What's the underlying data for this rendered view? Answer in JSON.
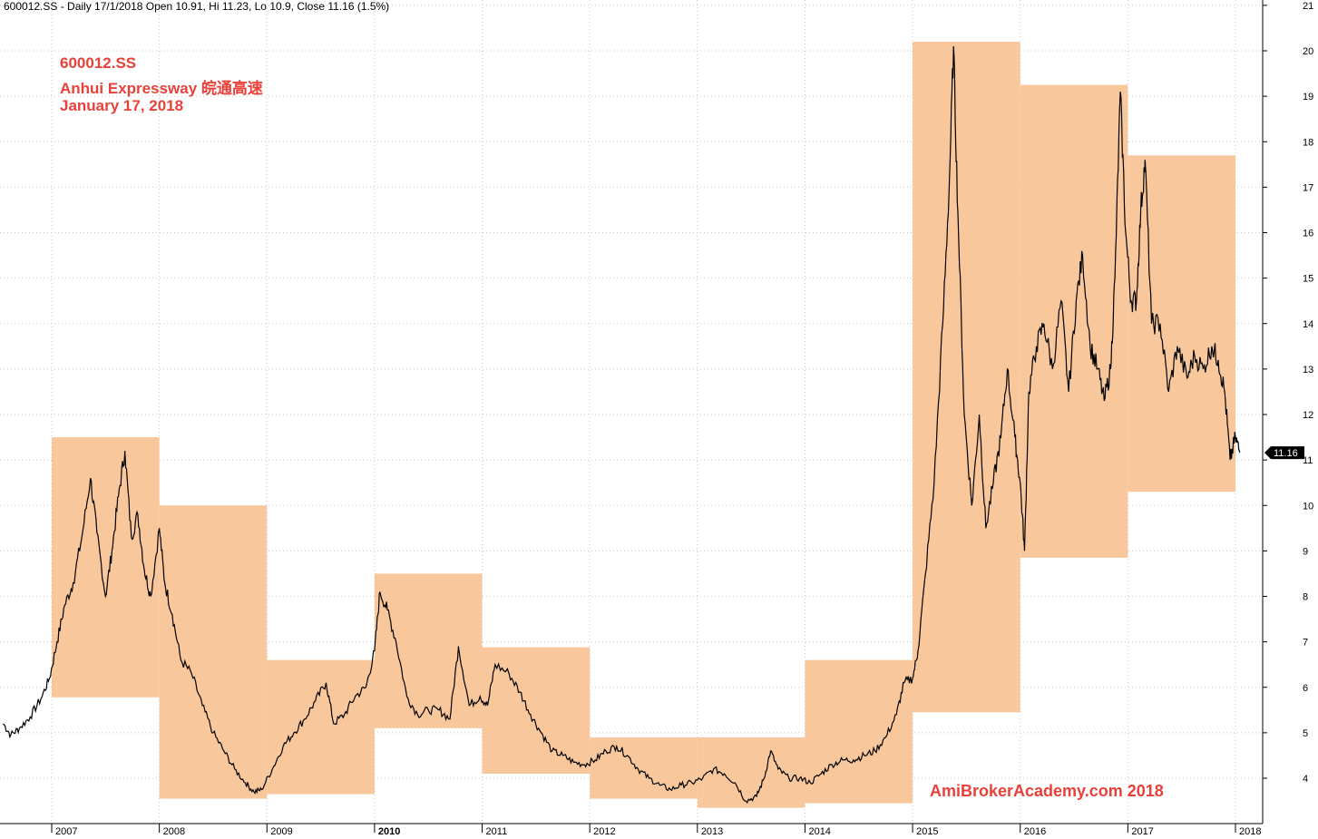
{
  "header": {
    "text": "600012.SS - Daily 17/1/2018 Open 10.91, Hi 11.23, Lo 10.9, Close 11.16 (1.5%)"
  },
  "annotation": {
    "line1": "600012.SS",
    "line2": "Anhui Expressway 皖通高速",
    "line3": "January 17, 2018"
  },
  "watermark": "AmiBrokerAcademy.com  2018",
  "colors": {
    "box_fill": "#f8c89c",
    "price_line": "#000000",
    "grid": "#c8c8c8",
    "annotation": "#e8413a",
    "price_tag_bg": "#000000"
  },
  "chart_data": {
    "type": "line",
    "ylim": [
      3.4,
      21
    ],
    "xlim": [
      2006.55,
      2018.15
    ],
    "yticks": [
      4,
      5,
      6,
      7,
      8,
      9,
      10,
      11,
      12,
      13,
      14,
      15,
      16,
      17,
      18,
      19,
      20,
      21
    ],
    "xticks": [
      {
        "label": "2007",
        "x": 2007.0
      },
      {
        "label": "2008",
        "x": 2008.0
      },
      {
        "label": "2009",
        "x": 2009.0
      },
      {
        "label": "2010",
        "x": 2010.0,
        "bold": true
      },
      {
        "label": "2011",
        "x": 2011.0
      },
      {
        "label": "2012",
        "x": 2012.0
      },
      {
        "label": "2013",
        "x": 2013.0
      },
      {
        "label": "2014",
        "x": 2014.0
      },
      {
        "label": "2015",
        "x": 2015.0
      },
      {
        "label": "2016",
        "x": 2016.0
      },
      {
        "label": "2017",
        "x": 2017.0
      },
      {
        "label": "2018",
        "x": 2018.0
      }
    ],
    "grid": true,
    "last_close": 11.16,
    "last_close_label": "11.16",
    "yearly_ranges": [
      {
        "year": 2007,
        "low": 5.78,
        "high": 11.5
      },
      {
        "year": 2008,
        "low": 3.55,
        "high": 10.0
      },
      {
        "year": 2009,
        "low": 3.65,
        "high": 6.6
      },
      {
        "year": 2010,
        "low": 5.1,
        "high": 8.5
      },
      {
        "year": 2011,
        "low": 4.1,
        "high": 6.88
      },
      {
        "year": 2012,
        "low": 3.55,
        "high": 4.9
      },
      {
        "year": 2013,
        "low": 3.35,
        "high": 4.9
      },
      {
        "year": 2014,
        "low": 3.45,
        "high": 6.6
      },
      {
        "year": 2015,
        "low": 5.45,
        "high": 20.2
      },
      {
        "year": 2016,
        "low": 8.85,
        "high": 19.25
      },
      {
        "year": 2017,
        "low": 10.3,
        "high": 17.7
      }
    ],
    "price_series": [
      [
        2006.55,
        5.2
      ],
      [
        2006.62,
        4.95
      ],
      [
        2006.7,
        5.1
      ],
      [
        2006.8,
        5.35
      ],
      [
        2006.9,
        5.75
      ],
      [
        2006.98,
        6.2
      ],
      [
        2007.05,
        7.0
      ],
      [
        2007.12,
        7.8
      ],
      [
        2007.2,
        8.3
      ],
      [
        2007.28,
        9.3
      ],
      [
        2007.36,
        10.6
      ],
      [
        2007.42,
        9.4
      ],
      [
        2007.5,
        8.0
      ],
      [
        2007.56,
        9.0
      ],
      [
        2007.62,
        10.2
      ],
      [
        2007.68,
        11.2
      ],
      [
        2007.74,
        9.3
      ],
      [
        2007.8,
        9.8
      ],
      [
        2007.86,
        8.6
      ],
      [
        2007.92,
        8.0
      ],
      [
        2008.0,
        9.5
      ],
      [
        2008.05,
        8.3
      ],
      [
        2008.12,
        7.6
      ],
      [
        2008.2,
        6.6
      ],
      [
        2008.3,
        6.3
      ],
      [
        2008.4,
        5.6
      ],
      [
        2008.5,
        5.0
      ],
      [
        2008.6,
        4.6
      ],
      [
        2008.7,
        4.2
      ],
      [
        2008.8,
        3.9
      ],
      [
        2008.88,
        3.7
      ],
      [
        2008.95,
        3.75
      ],
      [
        2009.05,
        4.2
      ],
      [
        2009.15,
        4.7
      ],
      [
        2009.25,
        5.0
      ],
      [
        2009.35,
        5.3
      ],
      [
        2009.45,
        5.7
      ],
      [
        2009.55,
        6.1
      ],
      [
        2009.62,
        5.2
      ],
      [
        2009.72,
        5.4
      ],
      [
        2009.82,
        5.8
      ],
      [
        2009.92,
        6.0
      ],
      [
        2010.0,
        6.8
      ],
      [
        2010.05,
        8.1
      ],
      [
        2010.12,
        7.7
      ],
      [
        2010.2,
        7.0
      ],
      [
        2010.3,
        5.8
      ],
      [
        2010.4,
        5.4
      ],
      [
        2010.5,
        5.5
      ],
      [
        2010.6,
        5.5
      ],
      [
        2010.7,
        5.3
      ],
      [
        2010.78,
        6.9
      ],
      [
        2010.88,
        5.6
      ],
      [
        2010.98,
        5.8
      ],
      [
        2011.05,
        5.6
      ],
      [
        2011.12,
        6.5
      ],
      [
        2011.25,
        6.3
      ],
      [
        2011.35,
        5.9
      ],
      [
        2011.45,
        5.4
      ],
      [
        2011.55,
        5.0
      ],
      [
        2011.65,
        4.6
      ],
      [
        2011.75,
        4.5
      ],
      [
        2011.85,
        4.35
      ],
      [
        2011.95,
        4.3
      ],
      [
        2012.05,
        4.4
      ],
      [
        2012.15,
        4.6
      ],
      [
        2012.25,
        4.7
      ],
      [
        2012.35,
        4.5
      ],
      [
        2012.45,
        4.2
      ],
      [
        2012.55,
        4.0
      ],
      [
        2012.65,
        3.85
      ],
      [
        2012.75,
        3.75
      ],
      [
        2012.85,
        3.85
      ],
      [
        2012.95,
        3.9
      ],
      [
        2013.05,
        4.0
      ],
      [
        2013.15,
        4.2
      ],
      [
        2013.25,
        4.1
      ],
      [
        2013.35,
        3.9
      ],
      [
        2013.45,
        3.5
      ],
      [
        2013.55,
        3.6
      ],
      [
        2013.62,
        4.0
      ],
      [
        2013.68,
        4.6
      ],
      [
        2013.75,
        4.2
      ],
      [
        2013.85,
        4.0
      ],
      [
        2013.95,
        4.0
      ],
      [
        2014.05,
        3.9
      ],
      [
        2014.15,
        4.1
      ],
      [
        2014.25,
        4.3
      ],
      [
        2014.35,
        4.4
      ],
      [
        2014.45,
        4.4
      ],
      [
        2014.55,
        4.5
      ],
      [
        2014.65,
        4.6
      ],
      [
        2014.75,
        4.9
      ],
      [
        2014.85,
        5.4
      ],
      [
        2014.92,
        6.1
      ],
      [
        2015.0,
        6.2
      ],
      [
        2015.05,
        6.8
      ],
      [
        2015.12,
        8.5
      ],
      [
        2015.2,
        10.5
      ],
      [
        2015.28,
        14.0
      ],
      [
        2015.34,
        17.0
      ],
      [
        2015.38,
        20.1
      ],
      [
        2015.42,
        16.5
      ],
      [
        2015.48,
        12.0
      ],
      [
        2015.55,
        10.0
      ],
      [
        2015.62,
        12.0
      ],
      [
        2015.68,
        9.5
      ],
      [
        2015.75,
        10.5
      ],
      [
        2015.82,
        11.5
      ],
      [
        2015.88,
        13.0
      ],
      [
        2015.95,
        11.5
      ],
      [
        2016.0,
        10.5
      ],
      [
        2016.04,
        9.0
      ],
      [
        2016.08,
        12.5
      ],
      [
        2016.15,
        13.5
      ],
      [
        2016.22,
        14.0
      ],
      [
        2016.3,
        13.0
      ],
      [
        2016.38,
        14.5
      ],
      [
        2016.45,
        12.5
      ],
      [
        2016.52,
        14.5
      ],
      [
        2016.58,
        15.5
      ],
      [
        2016.65,
        13.5
      ],
      [
        2016.72,
        13.0
      ],
      [
        2016.78,
        12.3
      ],
      [
        2016.84,
        13.0
      ],
      [
        2016.88,
        15.0
      ],
      [
        2016.93,
        19.1
      ],
      [
        2016.98,
        16.0
      ],
      [
        2017.03,
        14.5
      ],
      [
        2017.08,
        14.5
      ],
      [
        2017.12,
        16.5
      ],
      [
        2017.16,
        17.6
      ],
      [
        2017.22,
        14.0
      ],
      [
        2017.3,
        14.0
      ],
      [
        2017.38,
        12.5
      ],
      [
        2017.46,
        13.5
      ],
      [
        2017.55,
        12.8
      ],
      [
        2017.62,
        13.3
      ],
      [
        2017.7,
        13.0
      ],
      [
        2017.78,
        13.5
      ],
      [
        2017.84,
        13.2
      ],
      [
        2017.9,
        12.5
      ],
      [
        2017.95,
        11.0
      ],
      [
        2018.0,
        11.5
      ],
      [
        2018.04,
        11.16
      ]
    ]
  }
}
